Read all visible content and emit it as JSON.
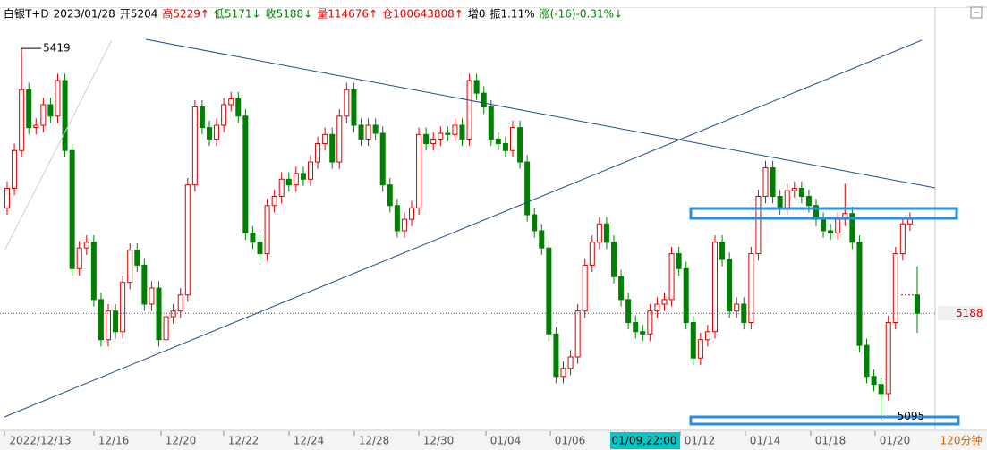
{
  "chart_data": {
    "type": "candlestick",
    "title_items": [
      {
        "text": "白银T+D",
        "color": "#000000"
      },
      {
        "text": "2023/01/28",
        "color": "#000000"
      },
      {
        "text": "开5204",
        "color": "#000000"
      },
      {
        "text": "高5229↑",
        "color": "#e00000"
      },
      {
        "text": "低5171↓",
        "color": "#008000"
      },
      {
        "text": "收5188↓",
        "color": "#008000"
      },
      {
        "text": "量114676↑",
        "color": "#e00000"
      },
      {
        "text": "仓100643808↑",
        "color": "#e00000"
      },
      {
        "text": "增0",
        "color": "#000000"
      },
      {
        "text": "振1.11%",
        "color": "#000000"
      },
      {
        "text": "涨(-16)-0.31%↓",
        "color": "#008000"
      }
    ],
    "x_labels": [
      "2022/12/13",
      "12/16",
      "12/20",
      "12/22",
      "12/24",
      "12/28",
      "12/30",
      "01/04",
      "01/06",
      "01/09,22:00",
      "01/12",
      "01/14",
      "01/18",
      "01/20"
    ],
    "period": "120分钟",
    "ylim": [
      5086,
      5455
    ],
    "up_color": "#e00000",
    "down_color": "#008000",
    "open": [
      5280,
      5297,
      5330,
      5383,
      5350,
      5352,
      5370,
      5360,
      5391,
      5330,
      5227,
      5245,
      5250,
      5200,
      5165,
      5190,
      5172,
      5215,
      5243,
      5230,
      5196,
      5210,
      5165,
      5185,
      5190,
      5204,
      5300,
      5368,
      5350,
      5340,
      5352,
      5370,
      5375,
      5360,
      5258,
      5250,
      5240,
      5282,
      5290,
      5305,
      5300,
      5310,
      5305,
      5320,
      5336,
      5344,
      5320,
      5360,
      5383,
      5352,
      5340,
      5352,
      5345,
      5300,
      5282,
      5260,
      5270,
      5280,
      5344,
      5336,
      5340,
      5345,
      5344,
      5352,
      5340,
      5391,
      5380,
      5368,
      5340,
      5336,
      5330,
      5350,
      5320,
      5274,
      5260,
      5245,
      5170,
      5133,
      5140,
      5150,
      5190,
      5230,
      5250,
      5266,
      5250,
      5220,
      5200,
      5180,
      5172,
      5170,
      5190,
      5196,
      5200,
      5240,
      5227,
      5180,
      5149,
      5165,
      5172,
      5250,
      5235,
      5190,
      5196,
      5180,
      5240,
      5290,
      5315,
      5290,
      5280,
      5295,
      5297,
      5290,
      5282,
      5270,
      5260,
      5258,
      5270,
      5275,
      5250,
      5160,
      5133,
      5126,
      5118,
      5180,
      5240,
      5266,
      5204
    ],
    "high": [
      5303,
      5336,
      5419,
      5389,
      5358,
      5376,
      5376,
      5397,
      5397,
      5336,
      5251,
      5256,
      5256,
      5206,
      5196,
      5196,
      5221,
      5249,
      5249,
      5236,
      5216,
      5216,
      5191,
      5196,
      5210,
      5306,
      5374,
      5374,
      5356,
      5358,
      5376,
      5381,
      5381,
      5366,
      5264,
      5256,
      5288,
      5296,
      5311,
      5311,
      5316,
      5316,
      5326,
      5342,
      5350,
      5350,
      5366,
      5389,
      5389,
      5358,
      5358,
      5358,
      5351,
      5306,
      5288,
      5276,
      5286,
      5350,
      5350,
      5346,
      5351,
      5351,
      5358,
      5358,
      5397,
      5397,
      5386,
      5374,
      5346,
      5342,
      5356,
      5356,
      5326,
      5280,
      5266,
      5251,
      5176,
      5146,
      5156,
      5196,
      5236,
      5256,
      5272,
      5272,
      5256,
      5226,
      5206,
      5186,
      5178,
      5196,
      5202,
      5206,
      5246,
      5246,
      5233,
      5186,
      5171,
      5178,
      5256,
      5256,
      5241,
      5202,
      5202,
      5246,
      5296,
      5321,
      5321,
      5296,
      5301,
      5303,
      5303,
      5296,
      5288,
      5276,
      5266,
      5276,
      5301,
      5281,
      5256,
      5166,
      5139,
      5132,
      5186,
      5246,
      5272,
      5276,
      5229
    ],
    "low": [
      5274,
      5291,
      5324,
      5344,
      5344,
      5346,
      5354,
      5354,
      5324,
      5221,
      5221,
      5239,
      5194,
      5159,
      5159,
      5166,
      5166,
      5209,
      5224,
      5190,
      5190,
      5159,
      5159,
      5179,
      5184,
      5198,
      5294,
      5344,
      5334,
      5334,
      5346,
      5364,
      5354,
      5252,
      5244,
      5234,
      5234,
      5276,
      5284,
      5294,
      5294,
      5299,
      5299,
      5314,
      5330,
      5314,
      5314,
      5354,
      5346,
      5334,
      5334,
      5339,
      5294,
      5276,
      5254,
      5254,
      5264,
      5274,
      5330,
      5330,
      5334,
      5338,
      5338,
      5334,
      5334,
      5374,
      5362,
      5334,
      5330,
      5324,
      5324,
      5314,
      5268,
      5254,
      5239,
      5164,
      5127,
      5127,
      5134,
      5144,
      5184,
      5224,
      5244,
      5244,
      5214,
      5194,
      5174,
      5166,
      5164,
      5164,
      5184,
      5190,
      5194,
      5221,
      5174,
      5143,
      5143,
      5159,
      5166,
      5229,
      5184,
      5184,
      5174,
      5174,
      5234,
      5284,
      5284,
      5274,
      5274,
      5289,
      5284,
      5276,
      5264,
      5254,
      5252,
      5252,
      5264,
      5244,
      5154,
      5127,
      5120,
      5095,
      5112,
      5174,
      5234,
      5260,
      5171
    ],
    "close": [
      5297,
      5330,
      5383,
      5350,
      5352,
      5370,
      5360,
      5391,
      5330,
      5227,
      5245,
      5250,
      5200,
      5165,
      5190,
      5172,
      5215,
      5243,
      5230,
      5196,
      5210,
      5165,
      5185,
      5190,
      5204,
      5300,
      5368,
      5350,
      5340,
      5352,
      5370,
      5375,
      5360,
      5258,
      5250,
      5240,
      5282,
      5290,
      5305,
      5300,
      5310,
      5305,
      5320,
      5336,
      5344,
      5320,
      5360,
      5383,
      5352,
      5340,
      5352,
      5345,
      5300,
      5282,
      5260,
      5270,
      5280,
      5344,
      5336,
      5340,
      5345,
      5344,
      5352,
      5340,
      5391,
      5380,
      5368,
      5340,
      5336,
      5330,
      5350,
      5320,
      5274,
      5260,
      5245,
      5170,
      5133,
      5140,
      5150,
      5190,
      5230,
      5250,
      5266,
      5250,
      5220,
      5200,
      5180,
      5172,
      5170,
      5190,
      5196,
      5200,
      5240,
      5227,
      5180,
      5149,
      5165,
      5172,
      5250,
      5235,
      5190,
      5196,
      5180,
      5240,
      5290,
      5315,
      5290,
      5280,
      5295,
      5297,
      5290,
      5282,
      5270,
      5260,
      5258,
      5270,
      5275,
      5250,
      5160,
      5133,
      5126,
      5118,
      5180,
      5240,
      5266,
      5270,
      5188
    ]
  }
}
